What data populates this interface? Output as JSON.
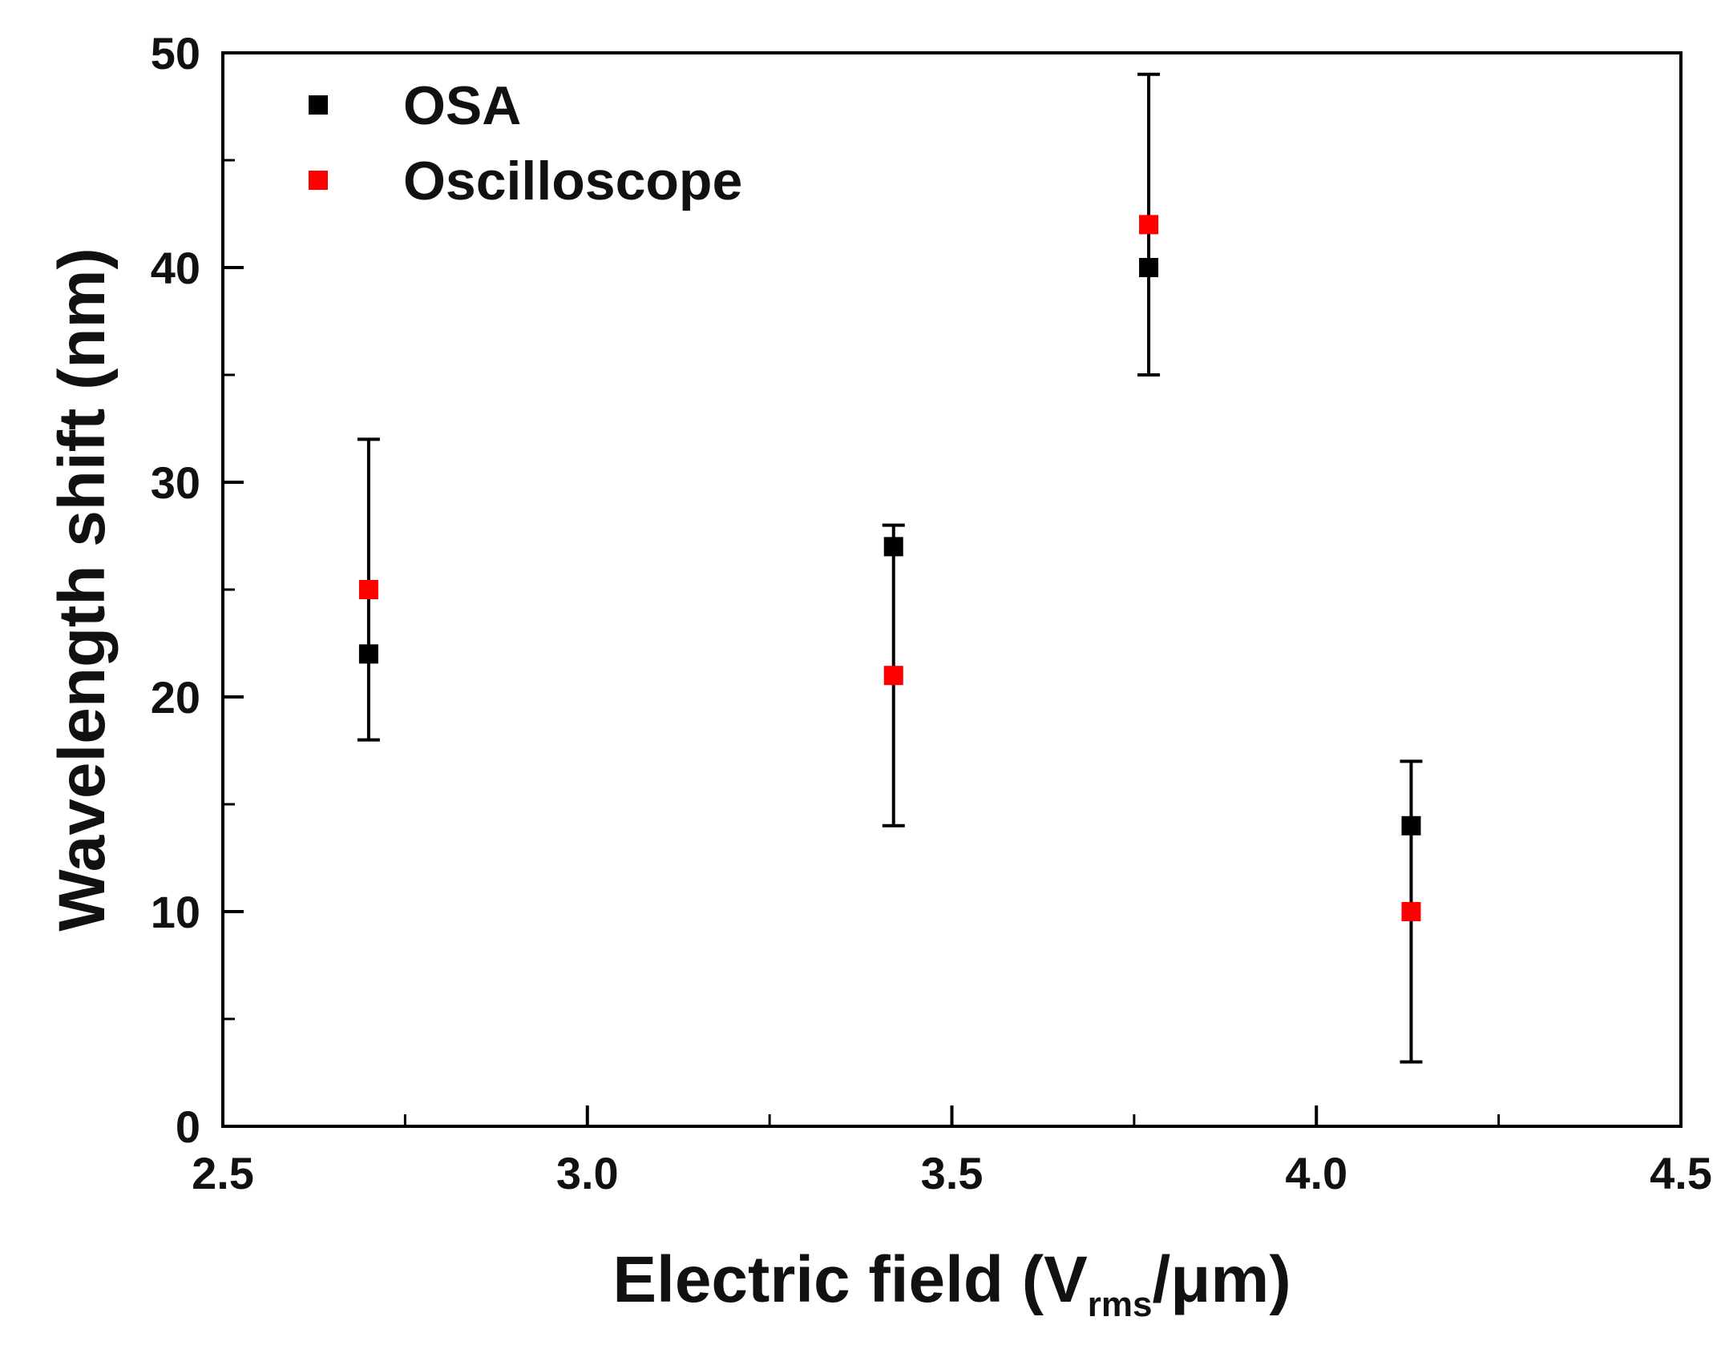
{
  "chart_data": {
    "type": "scatter",
    "xlabel": {
      "main": "Electric field (V",
      "subscript": "rms",
      "tail": "/μm)"
    },
    "ylabel": "Wavelength shift (nm)",
    "xlim": [
      2.5,
      4.5
    ],
    "ylim": [
      0,
      50
    ],
    "x_major_ticks": [
      2.5,
      3.0,
      3.5,
      4.0,
      4.5
    ],
    "x_minor_ticks": [
      2.75,
      3.25,
      3.75,
      4.25
    ],
    "x_tick_labels": [
      "2.5",
      "3.0",
      "3.5",
      "4.0",
      "4.5"
    ],
    "y_major_ticks": [
      0,
      10,
      20,
      30,
      40,
      50
    ],
    "y_minor_ticks": [
      5,
      15,
      25,
      35,
      45
    ],
    "y_tick_labels": [
      "0",
      "10",
      "20",
      "30",
      "40",
      "50"
    ],
    "grid": false,
    "legend_position": "top-left",
    "series": [
      {
        "name": "OSA",
        "color": "#000000",
        "marker": "square",
        "points": [
          {
            "x": 2.7,
            "y": 22,
            "err_low": 18,
            "err_high": 32
          },
          {
            "x": 3.42,
            "y": 27,
            "err_low": 14,
            "err_high": 28
          },
          {
            "x": 3.77,
            "y": 40,
            "err_low": 35,
            "err_high": 49
          },
          {
            "x": 4.13,
            "y": 14,
            "err_low": 3,
            "err_high": 17
          }
        ]
      },
      {
        "name": "Oscilloscope",
        "color": "#ff0000",
        "marker": "square",
        "points": [
          {
            "x": 2.7,
            "y": 25
          },
          {
            "x": 3.42,
            "y": 21
          },
          {
            "x": 3.77,
            "y": 42
          },
          {
            "x": 4.13,
            "y": 10
          }
        ]
      }
    ]
  }
}
